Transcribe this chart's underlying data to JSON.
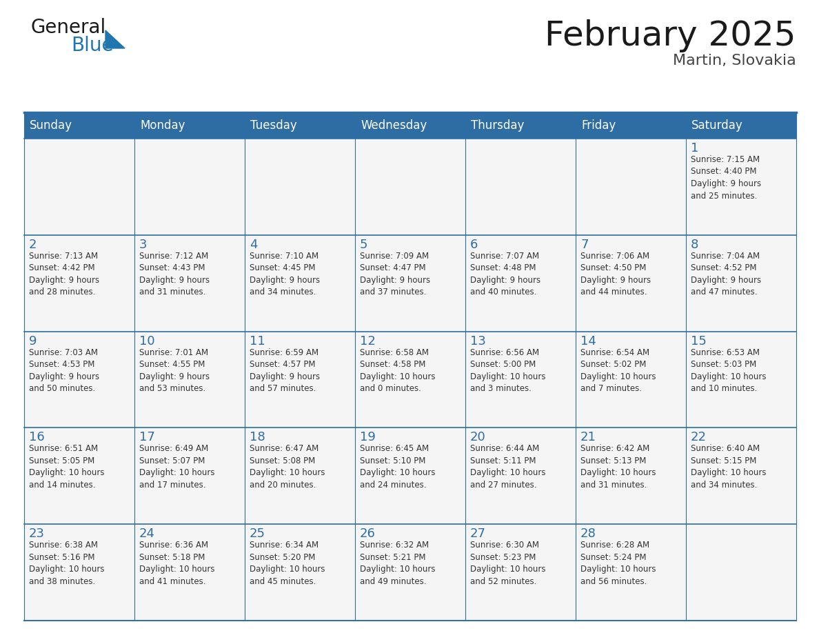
{
  "title": "February 2025",
  "subtitle": "Martin, Slovakia",
  "days_of_week": [
    "Sunday",
    "Monday",
    "Tuesday",
    "Wednesday",
    "Thursday",
    "Friday",
    "Saturday"
  ],
  "header_bg": "#2E6DA4",
  "header_text": "#FFFFFF",
  "cell_bg": "#F5F5F5",
  "border_color": "#2E6DA4",
  "day_number_color": "#2E6DA4",
  "text_color": "#333333",
  "calendar": [
    [
      null,
      null,
      null,
      null,
      null,
      null,
      1
    ],
    [
      2,
      3,
      4,
      5,
      6,
      7,
      8
    ],
    [
      9,
      10,
      11,
      12,
      13,
      14,
      15
    ],
    [
      16,
      17,
      18,
      19,
      20,
      21,
      22
    ],
    [
      23,
      24,
      25,
      26,
      27,
      28,
      null
    ]
  ],
  "sunrise_data": {
    "1": "Sunrise: 7:15 AM\nSunset: 4:40 PM\nDaylight: 9 hours\nand 25 minutes.",
    "2": "Sunrise: 7:13 AM\nSunset: 4:42 PM\nDaylight: 9 hours\nand 28 minutes.",
    "3": "Sunrise: 7:12 AM\nSunset: 4:43 PM\nDaylight: 9 hours\nand 31 minutes.",
    "4": "Sunrise: 7:10 AM\nSunset: 4:45 PM\nDaylight: 9 hours\nand 34 minutes.",
    "5": "Sunrise: 7:09 AM\nSunset: 4:47 PM\nDaylight: 9 hours\nand 37 minutes.",
    "6": "Sunrise: 7:07 AM\nSunset: 4:48 PM\nDaylight: 9 hours\nand 40 minutes.",
    "7": "Sunrise: 7:06 AM\nSunset: 4:50 PM\nDaylight: 9 hours\nand 44 minutes.",
    "8": "Sunrise: 7:04 AM\nSunset: 4:52 PM\nDaylight: 9 hours\nand 47 minutes.",
    "9": "Sunrise: 7:03 AM\nSunset: 4:53 PM\nDaylight: 9 hours\nand 50 minutes.",
    "10": "Sunrise: 7:01 AM\nSunset: 4:55 PM\nDaylight: 9 hours\nand 53 minutes.",
    "11": "Sunrise: 6:59 AM\nSunset: 4:57 PM\nDaylight: 9 hours\nand 57 minutes.",
    "12": "Sunrise: 6:58 AM\nSunset: 4:58 PM\nDaylight: 10 hours\nand 0 minutes.",
    "13": "Sunrise: 6:56 AM\nSunset: 5:00 PM\nDaylight: 10 hours\nand 3 minutes.",
    "14": "Sunrise: 6:54 AM\nSunset: 5:02 PM\nDaylight: 10 hours\nand 7 minutes.",
    "15": "Sunrise: 6:53 AM\nSunset: 5:03 PM\nDaylight: 10 hours\nand 10 minutes.",
    "16": "Sunrise: 6:51 AM\nSunset: 5:05 PM\nDaylight: 10 hours\nand 14 minutes.",
    "17": "Sunrise: 6:49 AM\nSunset: 5:07 PM\nDaylight: 10 hours\nand 17 minutes.",
    "18": "Sunrise: 6:47 AM\nSunset: 5:08 PM\nDaylight: 10 hours\nand 20 minutes.",
    "19": "Sunrise: 6:45 AM\nSunset: 5:10 PM\nDaylight: 10 hours\nand 24 minutes.",
    "20": "Sunrise: 6:44 AM\nSunset: 5:11 PM\nDaylight: 10 hours\nand 27 minutes.",
    "21": "Sunrise: 6:42 AM\nSunset: 5:13 PM\nDaylight: 10 hours\nand 31 minutes.",
    "22": "Sunrise: 6:40 AM\nSunset: 5:15 PM\nDaylight: 10 hours\nand 34 minutes.",
    "23": "Sunrise: 6:38 AM\nSunset: 5:16 PM\nDaylight: 10 hours\nand 38 minutes.",
    "24": "Sunrise: 6:36 AM\nSunset: 5:18 PM\nDaylight: 10 hours\nand 41 minutes.",
    "25": "Sunrise: 6:34 AM\nSunset: 5:20 PM\nDaylight: 10 hours\nand 45 minutes.",
    "26": "Sunrise: 6:32 AM\nSunset: 5:21 PM\nDaylight: 10 hours\nand 49 minutes.",
    "27": "Sunrise: 6:30 AM\nSunset: 5:23 PM\nDaylight: 10 hours\nand 52 minutes.",
    "28": "Sunrise: 6:28 AM\nSunset: 5:24 PM\nDaylight: 10 hours\nand 56 minutes."
  },
  "logo_color_general": "#1a1a1a",
  "logo_color_blue": "#2176AE",
  "logo_triangle_color": "#2176AE",
  "title_fontsize": 36,
  "subtitle_fontsize": 16,
  "header_fontsize": 12,
  "day_number_fontsize": 13,
  "cell_text_fontsize": 8.5
}
